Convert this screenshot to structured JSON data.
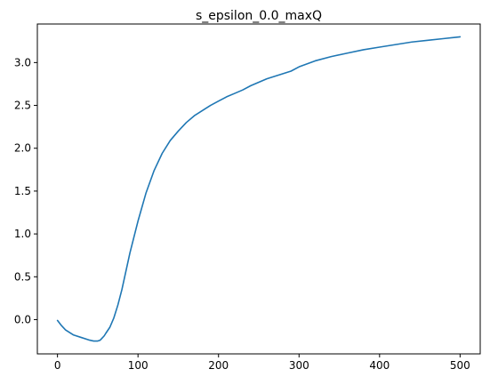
{
  "chart_data": {
    "type": "line",
    "title": "s_epsilon_0.0_maxQ",
    "xlabel": "",
    "ylabel": "",
    "xlim": [
      -25,
      525
    ],
    "ylim": [
      -0.4,
      3.45
    ],
    "grid": false,
    "xticks": [
      0,
      100,
      200,
      300,
      400,
      500
    ],
    "yticks": [
      0.0,
      0.5,
      1.0,
      1.5,
      2.0,
      2.5,
      3.0
    ],
    "xtick_labels": [
      "0",
      "100",
      "200",
      "300",
      "400",
      "500"
    ],
    "ytick_labels": [
      "0.0",
      "0.5",
      "1.0",
      "1.5",
      "2.0",
      "2.5",
      "3.0"
    ],
    "series": [
      {
        "color": "#1f77b4",
        "x": [
          0,
          5,
          10,
          20,
          30,
          40,
          45,
          48,
          50,
          53,
          55,
          58,
          60,
          65,
          70,
          75,
          80,
          90,
          100,
          110,
          120,
          130,
          140,
          150,
          160,
          170,
          180,
          190,
          200,
          210,
          220,
          230,
          240,
          250,
          260,
          270,
          280,
          290,
          300,
          320,
          340,
          360,
          380,
          400,
          420,
          440,
          460,
          480,
          500
        ],
        "y": [
          -0.01,
          -0.07,
          -0.12,
          -0.18,
          -0.21,
          -0.24,
          -0.25,
          -0.25,
          -0.25,
          -0.24,
          -0.22,
          -0.19,
          -0.16,
          -0.09,
          0.02,
          0.17,
          0.35,
          0.78,
          1.15,
          1.48,
          1.74,
          1.94,
          2.09,
          2.2,
          2.3,
          2.38,
          2.44,
          2.5,
          2.55,
          2.6,
          2.64,
          2.68,
          2.73,
          2.77,
          2.81,
          2.84,
          2.87,
          2.9,
          2.95,
          3.02,
          3.07,
          3.11,
          3.15,
          3.18,
          3.21,
          3.24,
          3.26,
          3.28,
          3.3
        ]
      }
    ]
  }
}
